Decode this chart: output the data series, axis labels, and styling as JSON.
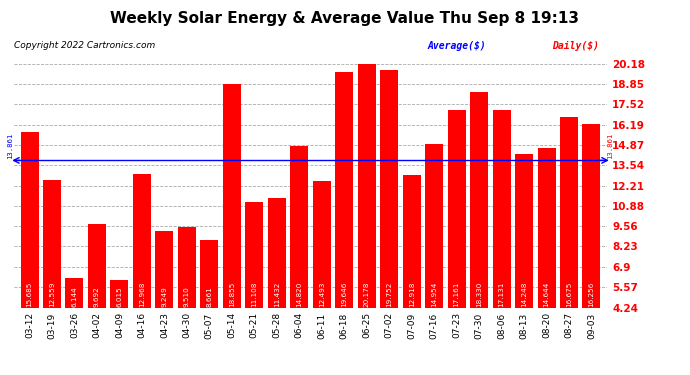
{
  "title": "Weekly Solar Energy & Average Value Thu Sep 8 19:13",
  "copyright": "Copyright 2022 Cartronics.com",
  "legend_average": "Average($)",
  "legend_daily": "Daily($)",
  "average_value": 13.861,
  "categories": [
    "03-12",
    "03-19",
    "03-26",
    "04-02",
    "04-09",
    "04-16",
    "04-23",
    "04-30",
    "05-07",
    "05-14",
    "05-21",
    "05-28",
    "06-04",
    "06-11",
    "06-18",
    "06-25",
    "07-02",
    "07-09",
    "07-16",
    "07-23",
    "07-30",
    "08-06",
    "08-13",
    "08-20",
    "08-27",
    "09-03"
  ],
  "values": [
    15.685,
    12.559,
    6.144,
    9.692,
    6.015,
    12.968,
    9.249,
    9.51,
    8.661,
    18.855,
    11.108,
    11.432,
    14.82,
    12.493,
    19.646,
    20.178,
    19.752,
    12.918,
    14.954,
    17.161,
    18.33,
    17.131,
    14.248,
    14.644,
    16.675,
    16.256
  ],
  "bar_color": "#ff0000",
  "average_line_color": "#0000ff",
  "background_color": "#ffffff",
  "grid_color": "#aaaaaa",
  "ylim_min": 4.24,
  "ylim_max": 20.18,
  "yticks": [
    4.24,
    5.57,
    6.9,
    8.23,
    9.56,
    10.88,
    12.21,
    13.54,
    14.87,
    16.19,
    17.52,
    18.85,
    20.18
  ],
  "title_fontsize": 11,
  "copyright_fontsize": 6.5,
  "tick_fontsize": 6.5,
  "ytick_fontsize": 7.5,
  "bar_label_fontsize": 5.2,
  "average_label": "13.861",
  "bar_label_color": "#ffffff"
}
